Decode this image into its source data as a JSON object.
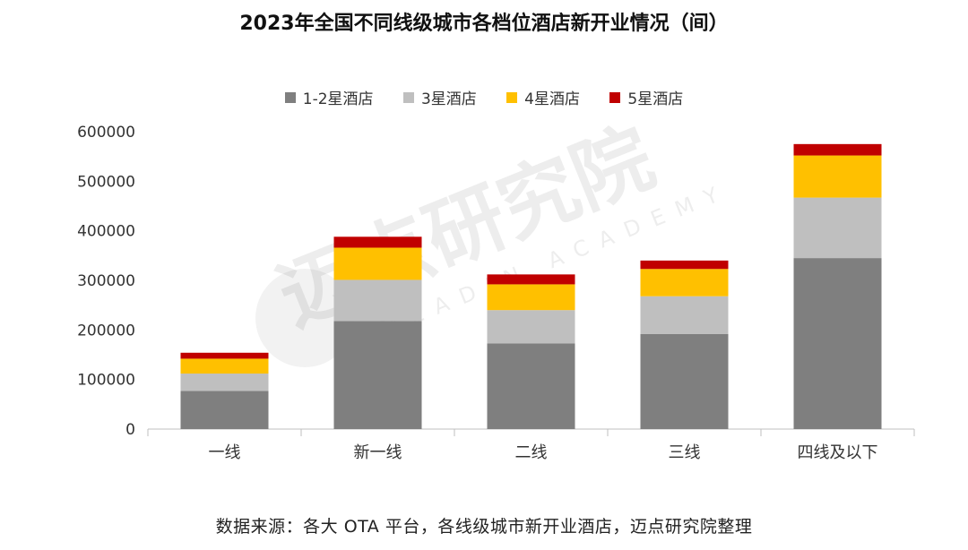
{
  "chart_data": {
    "type": "bar",
    "stacked": true,
    "title": "2023年全国不同线级城市各档位酒店新开业情况（间）",
    "categories": [
      "一线",
      "新一线",
      "二线",
      "三线",
      "四线及以下"
    ],
    "series": [
      {
        "name": "1-2星酒店",
        "color": "#7f7f7f",
        "values": [
          77000,
          218000,
          173000,
          192000,
          345000
        ]
      },
      {
        "name": "3星酒店",
        "color": "#bfbfbf",
        "values": [
          35000,
          83000,
          67000,
          76000,
          122000
        ]
      },
      {
        "name": "4星酒店",
        "color": "#ffc000",
        "values": [
          30000,
          65000,
          52000,
          55000,
          85000
        ]
      },
      {
        "name": "5星酒店",
        "color": "#c00000",
        "values": [
          12000,
          22000,
          20000,
          17000,
          23000
        ]
      }
    ],
    "y_ticks": [
      "0",
      "100000",
      "200000",
      "300000",
      "400000",
      "500000",
      "600000"
    ],
    "ylim": [
      0,
      600000
    ],
    "xlabel": "",
    "ylabel": "",
    "legend": "top-center",
    "grid": false
  },
  "source_note": "数据来源：各大 OTA 平台，各线级城市新开业酒店，迈点研究院整理",
  "watermark": {
    "cn": "迈点研究院",
    "en": "MEADIN ACADEMY"
  }
}
